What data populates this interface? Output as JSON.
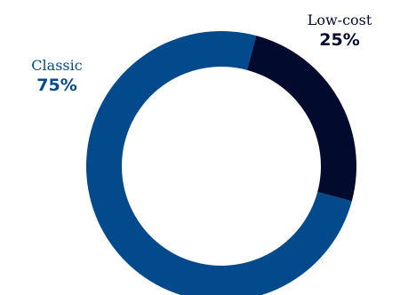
{
  "chart_data": {
    "type": "pie",
    "style": "donut",
    "slices": [
      {
        "label": "Classic",
        "value": 75,
        "value_label": "75%",
        "color": "#034a8c"
      },
      {
        "label": "Low-cost",
        "value": 25,
        "value_label": "25%",
        "color": "#020a2d"
      }
    ]
  }
}
